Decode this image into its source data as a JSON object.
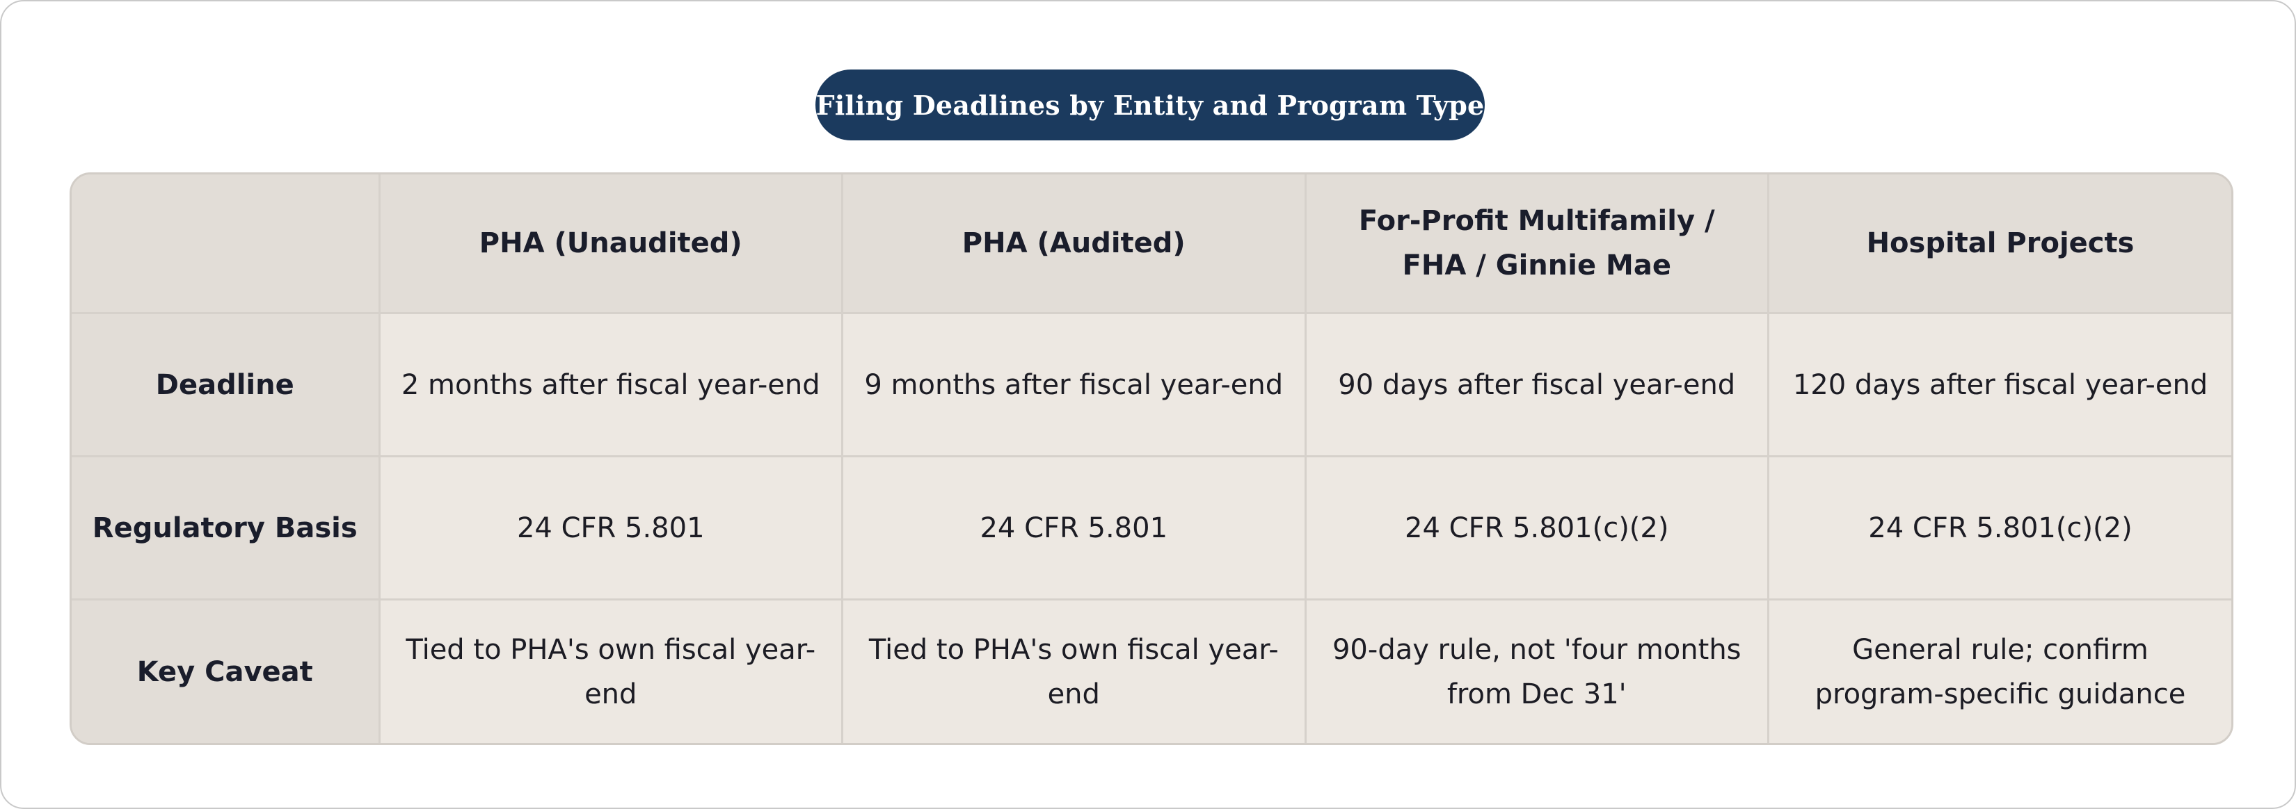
{
  "title": "Filing Deadlines by Entity and Program Type",
  "table": {
    "corner": "",
    "columns": [
      "PHA (Unaudited)",
      "PHA (Audited)",
      "For-Profit Multifamily / FHA / Ginnie Mae",
      "Hospital Projects"
    ],
    "rows": [
      {
        "label": "Deadline",
        "cells": [
          "2 months after fiscal year-end",
          "9 months after fiscal year-end",
          "90 days after fiscal year-end",
          "120 days after fiscal year-end"
        ]
      },
      {
        "label": "Regulatory Basis",
        "cells": [
          "24 CFR 5.801",
          "24 CFR 5.801",
          "24 CFR 5.801(c)(2)",
          "24 CFR 5.801(c)(2)"
        ]
      },
      {
        "label": "Key Caveat",
        "cells": [
          "Tied to PHA's own fiscal year-end",
          "Tied to PHA's own fiscal year-end",
          "90-day rule, not 'four months from Dec 31'",
          "General rule; confirm program-specific guidance"
        ]
      }
    ]
  }
}
